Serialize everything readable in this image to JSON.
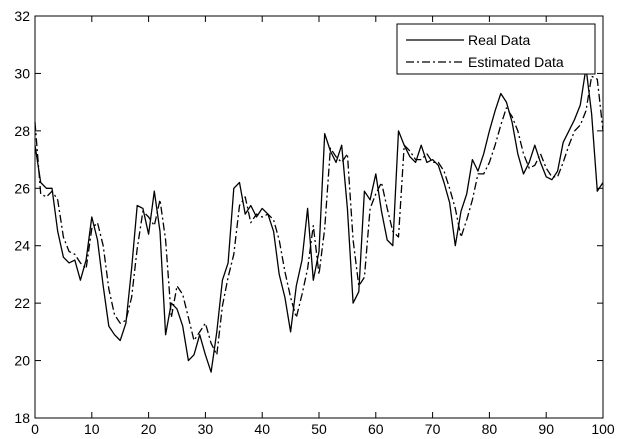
{
  "chart_data": {
    "type": "line",
    "title": "",
    "xlabel": "",
    "ylabel": "",
    "xlim": [
      0,
      100
    ],
    "ylim": [
      18,
      32
    ],
    "x_ticks": [
      0,
      10,
      20,
      30,
      40,
      50,
      60,
      70,
      80,
      90,
      100
    ],
    "y_ticks": [
      18,
      20,
      22,
      24,
      26,
      28,
      30,
      32
    ],
    "grid": false,
    "legend_position": "top-right",
    "series": [
      {
        "name": "Real Data",
        "line_style": "solid",
        "color": "#000000",
        "x": [
          0,
          1,
          2,
          3,
          4,
          5,
          6,
          7,
          8,
          9,
          10,
          11,
          12,
          13,
          14,
          15,
          16,
          17,
          18,
          19,
          20,
          21,
          22,
          23,
          24,
          25,
          26,
          27,
          28,
          29,
          30,
          31,
          32,
          33,
          34,
          35,
          36,
          37,
          38,
          39,
          40,
          41,
          42,
          43,
          44,
          45,
          46,
          47,
          48,
          49,
          50,
          51,
          52,
          53,
          54,
          55,
          56,
          57,
          58,
          59,
          60,
          61,
          62,
          63,
          64,
          65,
          66,
          67,
          68,
          69,
          70,
          71,
          72,
          73,
          74,
          75,
          76,
          77,
          78,
          79,
          80,
          81,
          82,
          83,
          84,
          85,
          86,
          87,
          88,
          89,
          90,
          91,
          92,
          93,
          94,
          95,
          96,
          97,
          98,
          99,
          100
        ],
        "y": [
          27.5,
          26.2,
          26.0,
          26.0,
          24.5,
          23.6,
          23.4,
          23.5,
          22.8,
          23.5,
          25.0,
          24.2,
          22.6,
          21.2,
          20.9,
          20.7,
          21.3,
          23.2,
          25.4,
          25.3,
          24.4,
          25.9,
          24.5,
          20.9,
          22.0,
          21.8,
          21.2,
          20.0,
          20.2,
          20.9,
          20.2,
          19.6,
          21.0,
          22.8,
          23.4,
          26.0,
          26.2,
          25.1,
          25.4,
          25.0,
          25.3,
          25.1,
          24.5,
          23.0,
          22.2,
          21.0,
          22.6,
          23.5,
          25.3,
          22.8,
          23.8,
          27.9,
          27.3,
          26.9,
          27.5,
          25.3,
          22.0,
          22.4,
          25.9,
          25.6,
          26.5,
          25.2,
          24.2,
          24.0,
          28.0,
          27.5,
          27.1,
          26.9,
          27.5,
          26.9,
          27.0,
          26.8,
          26.2,
          25.5,
          24.0,
          25.2,
          25.8,
          27.0,
          26.6,
          27.2,
          28.0,
          28.7,
          29.3,
          29.0,
          28.3,
          27.2,
          26.5,
          26.9,
          27.5,
          26.9,
          26.4,
          26.3,
          26.6,
          27.6,
          28.0,
          28.4,
          28.9,
          30.2,
          28.6,
          25.9,
          26.2
        ]
      },
      {
        "name": "Estimated Data",
        "line_style": "dash-dot",
        "color": "#000000",
        "x": [
          0,
          1,
          2,
          3,
          4,
          5,
          6,
          7,
          8,
          9,
          10,
          11,
          12,
          13,
          14,
          15,
          16,
          17,
          18,
          19,
          20,
          21,
          22,
          23,
          24,
          25,
          26,
          27,
          28,
          29,
          30,
          31,
          32,
          33,
          34,
          35,
          36,
          37,
          38,
          39,
          40,
          41,
          42,
          43,
          44,
          45,
          46,
          47,
          48,
          49,
          50,
          51,
          52,
          53,
          54,
          55,
          56,
          57,
          58,
          59,
          60,
          61,
          62,
          63,
          64,
          65,
          66,
          67,
          68,
          69,
          70,
          71,
          72,
          73,
          74,
          75,
          76,
          77,
          78,
          79,
          80,
          81,
          82,
          83,
          84,
          85,
          86,
          87,
          88,
          89,
          90,
          91,
          92,
          93,
          94,
          95,
          96,
          97,
          98,
          99,
          100
        ],
        "y": [
          28.3,
          25.8,
          25.7,
          25.9,
          25.6,
          24.3,
          23.8,
          23.7,
          23.4,
          23.2,
          24.6,
          24.8,
          24.0,
          22.5,
          21.6,
          21.3,
          21.4,
          22.2,
          23.9,
          25.2,
          25.0,
          24.7,
          25.6,
          24.2,
          21.5,
          22.6,
          22.3,
          21.5,
          20.7,
          21.0,
          21.3,
          20.6,
          20.2,
          21.9,
          22.9,
          23.7,
          25.4,
          25.7,
          24.8,
          25.1,
          25.0,
          25.1,
          24.9,
          24.2,
          23.1,
          22.2,
          21.5,
          22.3,
          23.2,
          24.7,
          23.0,
          24.6,
          27.4,
          27.1,
          26.9,
          27.2,
          24.2,
          22.6,
          22.9,
          25.3,
          25.8,
          26.2,
          25.3,
          24.5,
          24.3,
          27.5,
          27.3,
          27.0,
          27.0,
          27.2,
          26.9,
          26.9,
          26.6,
          26.0,
          25.3,
          24.3,
          24.9,
          25.6,
          26.5,
          26.5,
          26.9,
          27.5,
          28.2,
          28.8,
          28.5,
          28.0,
          27.2,
          26.7,
          26.8,
          27.2,
          26.7,
          26.4,
          26.4,
          26.9,
          27.5,
          28.0,
          28.2,
          28.7,
          29.9,
          29.8,
          28.0
        ]
      }
    ]
  }
}
